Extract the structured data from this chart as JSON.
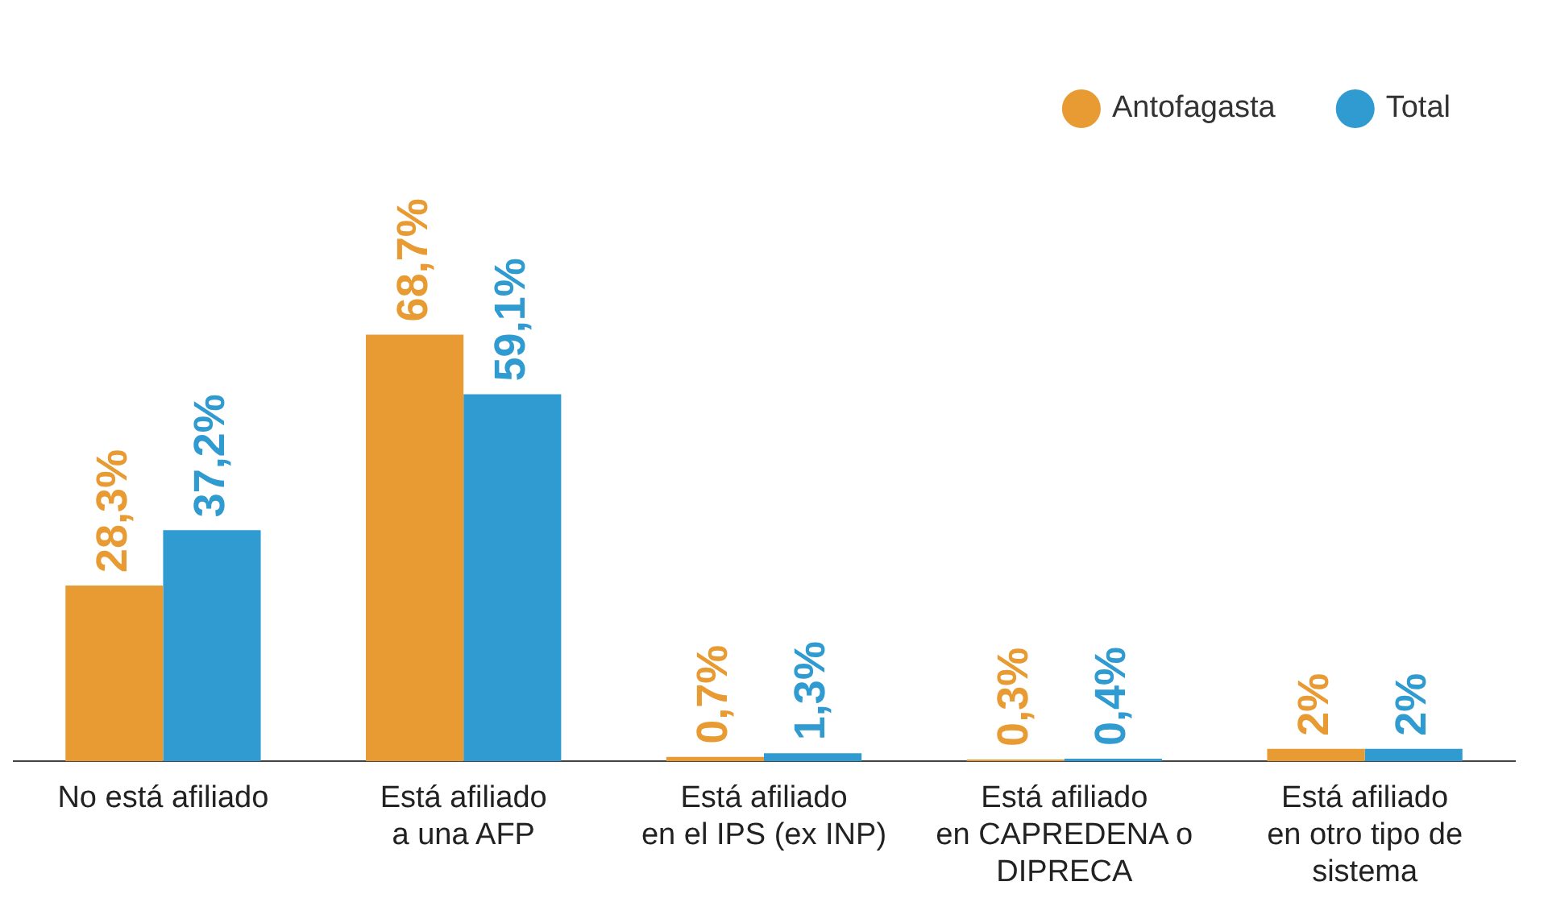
{
  "chart_data": {
    "type": "bar",
    "categories": [
      "No está afiliado",
      "Está afiliado\na una AFP",
      "Está afiliado\nen el IPS (ex INP)",
      "Está afiliado\nen CAPREDENA o\nDIPRECA",
      "Está afiliado\nen otro tipo de\nsistema"
    ],
    "series": [
      {
        "name": "Antofagasta",
        "color": "#e99b33",
        "values": [
          28.3,
          68.7,
          0.7,
          0.3,
          2
        ],
        "value_labels": [
          "28,3%",
          "68,7%",
          "0,7%",
          "0,3%",
          "2%"
        ]
      },
      {
        "name": "Total",
        "color": "#2f9bd0",
        "values": [
          37.2,
          59.1,
          1.3,
          0.4,
          2
        ],
        "value_labels": [
          "37,2%",
          "59,1%",
          "1,3%",
          "0,4%",
          "2%"
        ]
      }
    ],
    "legend": "top right",
    "grid": false
  }
}
